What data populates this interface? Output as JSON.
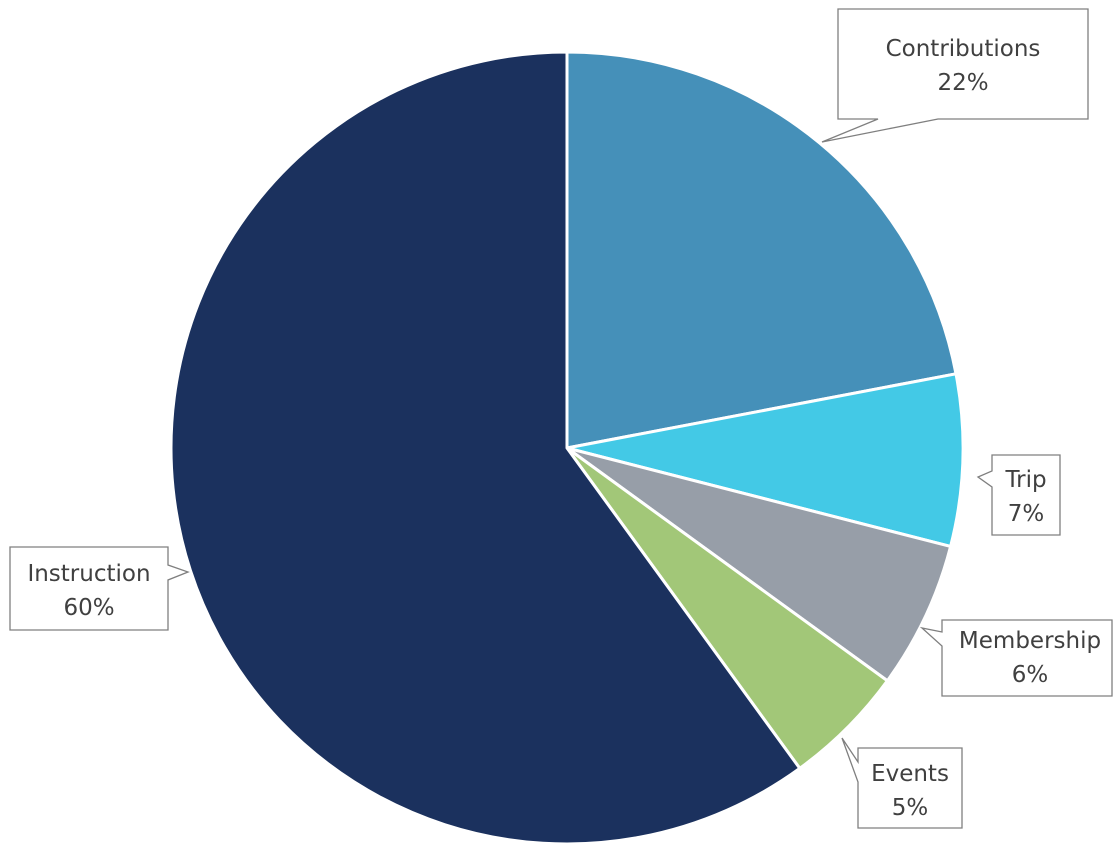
{
  "chart_data": {
    "type": "pie",
    "title": "",
    "legend": "none",
    "start_angle_deg": 90,
    "direction": "clockwise",
    "data_labels": "callouts with category and percent",
    "slices": [
      {
        "label": "Contributions",
        "value": 22,
        "display": "22%",
        "color": "#4590b9"
      },
      {
        "label": "Trip",
        "value": 7,
        "display": "7%",
        "color": "#43c9e6"
      },
      {
        "label": "Membership",
        "value": 6,
        "display": "6%",
        "color": "#979ea8"
      },
      {
        "label": "Events",
        "value": 5,
        "display": "5%",
        "color": "#a2c778"
      },
      {
        "label": "Instruction",
        "value": 60,
        "display": "60%",
        "color": "#1b315e"
      }
    ]
  }
}
